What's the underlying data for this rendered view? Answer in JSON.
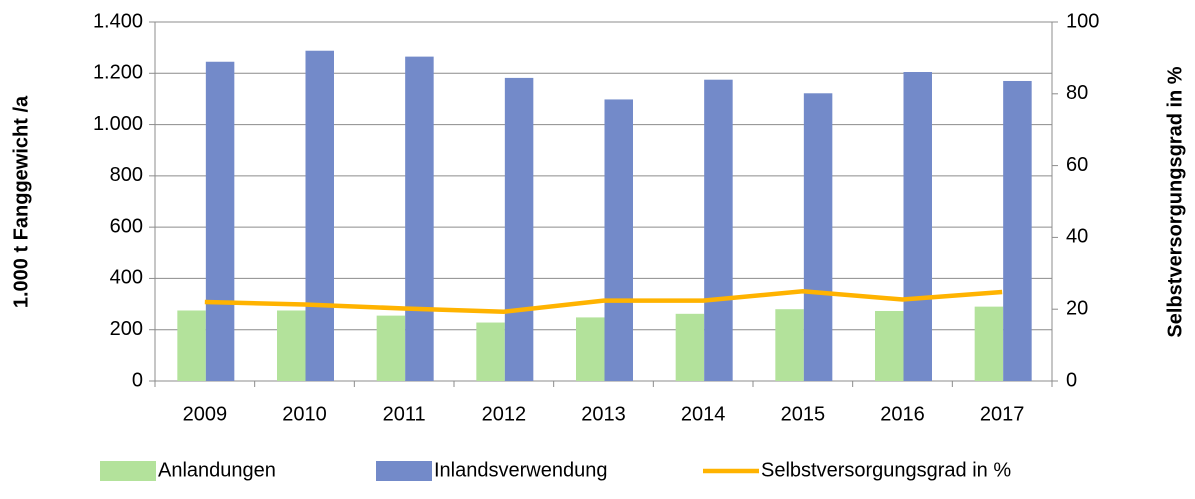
{
  "chart_data": {
    "type": "bar",
    "categories": [
      "2009",
      "2010",
      "2011",
      "2012",
      "2013",
      "2014",
      "2015",
      "2016",
      "2017"
    ],
    "series": [
      {
        "name": "Anlandungen",
        "color": "#b3e29b",
        "values": [
          275,
          275,
          255,
          228,
          248,
          262,
          280,
          273,
          290
        ]
      },
      {
        "name": "Inlandsverwendung",
        "color": "#738ac9",
        "values": [
          1245,
          1288,
          1265,
          1182,
          1098,
          1175,
          1122,
          1205,
          1170
        ]
      },
      {
        "name": "Selbstversorgungsgrad in %",
        "type": "line",
        "axis": "y2",
        "color": "#ffb300",
        "values": [
          22,
          21.3,
          20.2,
          19.3,
          22.4,
          22.4,
          25,
          22.7,
          24.8
        ]
      }
    ],
    "ylabel": "1.000 t Fanggewicht /a",
    "y2label": "Selbstversorgungsgrad in %",
    "ylim": [
      0,
      1400
    ],
    "yticks": [
      0,
      200,
      400,
      600,
      800,
      {
        "value": 1000,
        "label": "1.000"
      },
      {
        "value": 1200,
        "label": "1.200"
      },
      {
        "value": 1400,
        "label": "1.400"
      }
    ],
    "y2lim": [
      0,
      100
    ],
    "y2ticks": [
      0,
      20,
      40,
      60,
      80,
      100
    ],
    "grid": true,
    "legend": "bottom"
  }
}
